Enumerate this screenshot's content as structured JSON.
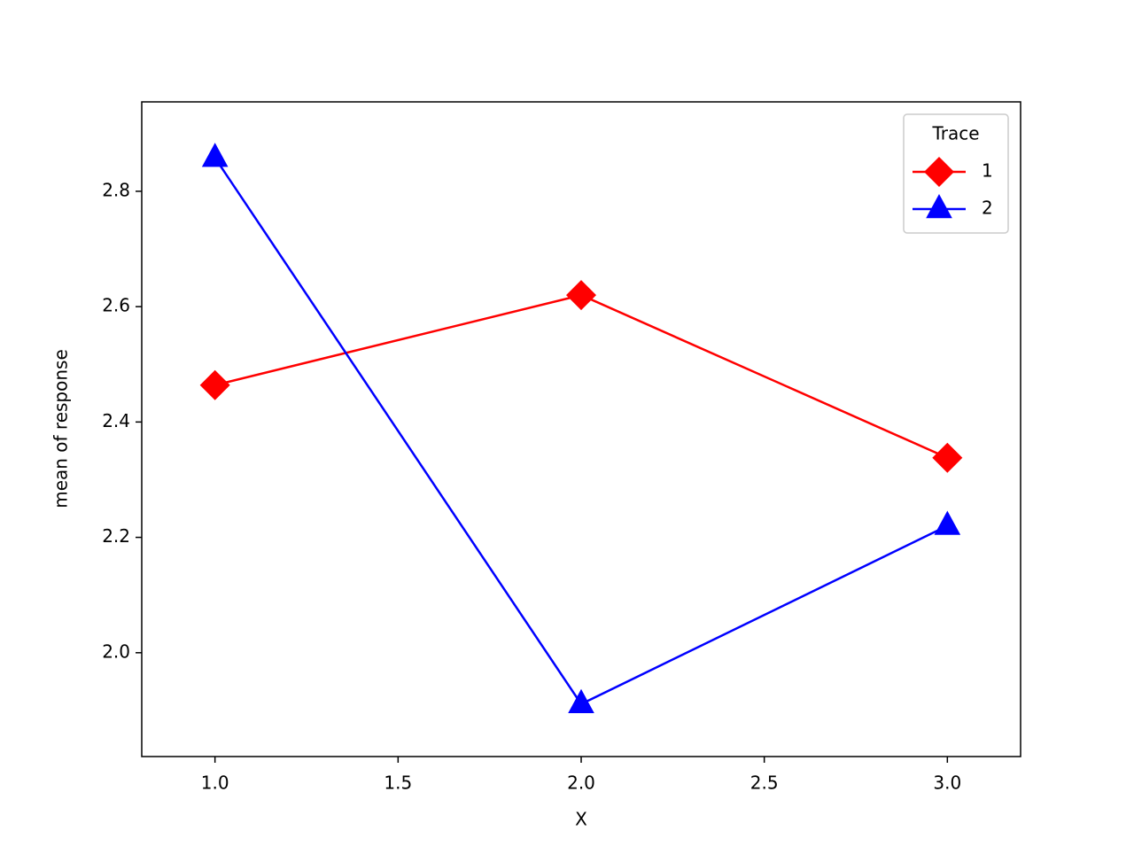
{
  "chart_data": {
    "type": "line",
    "x_label": "X",
    "y_label": "mean of response",
    "x": [
      1,
      2,
      3
    ],
    "series": [
      {
        "name": "1",
        "color": "#ff0000",
        "marker": "diamond",
        "values": [
          2.464,
          2.62,
          2.338
        ]
      },
      {
        "name": "2",
        "color": "#0000ff",
        "marker": "triangle",
        "values": [
          2.858,
          1.911,
          2.22
        ]
      }
    ],
    "xlim": [
      0.8,
      3.2
    ],
    "xticks": [
      {
        "value": 1,
        "label": "1.0"
      },
      1.5,
      {
        "value": 2,
        "label": "2.0"
      },
      2.5,
      {
        "value": 3,
        "label": "3.0"
      }
    ],
    "ylim": [
      1.82,
      2.955
    ],
    "yticks": [
      {
        "value": 2,
        "label": "2.0"
      },
      2.2,
      2.4,
      2.6,
      2.8
    ],
    "legend_title": "Trace",
    "legend_position": "upper right",
    "grid": false
  }
}
